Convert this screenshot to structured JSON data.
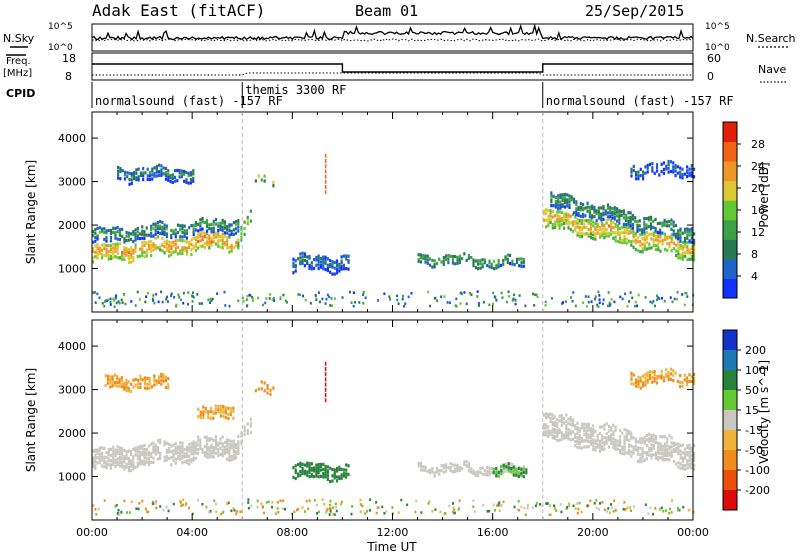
{
  "header": {
    "station": "Adak East (fitACF)",
    "beam": "Beam 01",
    "date": "25/Sep/2015"
  },
  "status_labels": {
    "nsky": "N.Sky",
    "nsearch": "N.Search",
    "freq": "Freq.",
    "freq_unit": "[MHz]",
    "nave": "Nave",
    "cpid": "CPID",
    "noise_top_left": "10^5",
    "noise_bottom_left": "10^0",
    "noise_top_right": "10^5",
    "noise_bottom_right": "10^0",
    "freq_top": "18",
    "freq_bottom": "8",
    "nave_top": "60",
    "nave_bottom": "0"
  },
  "cpid_segments": [
    {
      "label": "normalsound (fast) -157 RF",
      "start_hour": 0,
      "end_hour": 6
    },
    {
      "label": "themis 3300 RF",
      "start_hour": 6,
      "end_hour": 18
    },
    {
      "label": "normalsound (fast) -157 RF",
      "start_hour": 18,
      "end_hour": 24
    }
  ],
  "chart_data": [
    {
      "type": "heatmap",
      "name": "power",
      "ylabel": "Slant Range [km]",
      "xlabel": "Time UT",
      "x_ticks": [
        "00:00",
        "04:00",
        "08:00",
        "12:00",
        "16:00",
        "20:00",
        "00:00"
      ],
      "y_ticks": [
        1000,
        2000,
        3000,
        4000
      ],
      "xlim": [
        0,
        24
      ],
      "ylim": [
        0,
        4600
      ],
      "colorbar": {
        "label": "Power [dB]",
        "ticks": [
          4,
          8,
          12,
          16,
          20,
          24,
          28
        ],
        "range": [
          0,
          32
        ],
        "colors": [
          "#1432ff",
          "#1e64c8",
          "#287850",
          "#3ca046",
          "#64c832",
          "#dcc832",
          "#f09628",
          "#f06414",
          "#e11e0a"
        ]
      },
      "bands": [
        {
          "t0": 0.0,
          "t1": 5.8,
          "r_start": 1350,
          "r_end": 1700,
          "width": 380,
          "level": 24
        },
        {
          "t0": 0.0,
          "t1": 5.8,
          "r_start": 1750,
          "r_end": 2050,
          "width": 320,
          "level": 12
        },
        {
          "t0": 5.8,
          "t1": 6.3,
          "r_start": 1700,
          "r_end": 2200,
          "width": 350,
          "level": 18
        },
        {
          "t0": 6.5,
          "t1": 7.2,
          "r_start": 3050,
          "r_end": 3050,
          "width": 200,
          "level": 18
        },
        {
          "t0": 8.0,
          "t1": 10.2,
          "r_start": 1150,
          "r_end": 1150,
          "width": 350,
          "level": 9
        },
        {
          "t0": 13.0,
          "t1": 17.2,
          "r_start": 1250,
          "r_end": 1150,
          "width": 230,
          "level": 14
        },
        {
          "t0": 18.0,
          "t1": 24.0,
          "r_start": 2200,
          "r_end": 1450,
          "width": 450,
          "level": 22
        },
        {
          "t0": 18.3,
          "t1": 24.0,
          "r_start": 2600,
          "r_end": 1800,
          "width": 350,
          "level": 12
        },
        {
          "t0": 21.5,
          "t1": 24.0,
          "r_start": 3300,
          "r_end": 3300,
          "width": 300,
          "level": 7
        },
        {
          "t0": 1.0,
          "t1": 4.0,
          "r_start": 3200,
          "r_end": 3200,
          "width": 300,
          "level": 10
        }
      ]
    },
    {
      "type": "heatmap",
      "name": "velocity",
      "ylabel": "Slant Range [km]",
      "xlabel": "Time UT",
      "x_ticks": [
        "00:00",
        "04:00",
        "08:00",
        "12:00",
        "16:00",
        "20:00",
        "00:00"
      ],
      "y_ticks": [
        1000,
        2000,
        3000,
        4000
      ],
      "xlim": [
        0,
        24
      ],
      "ylim": [
        0,
        4600
      ],
      "colorbar": {
        "label": "Velocity [m s^-1]",
        "ticks": [
          200,
          100,
          50,
          15,
          -15,
          -50,
          -100,
          -200
        ],
        "range": [
          -250,
          250
        ],
        "colors": [
          "#1432c8",
          "#1e78b4",
          "#28823c",
          "#64c832",
          "#c8c8c0",
          "#f0b43c",
          "#f08c1e",
          "#eb500a",
          "#dc0a0a"
        ]
      },
      "bands": [
        {
          "t0": 0.0,
          "t1": 5.8,
          "r_start": 1400,
          "r_end": 1750,
          "width": 500,
          "level": 0
        },
        {
          "t0": 5.8,
          "t1": 6.3,
          "r_start": 1800,
          "r_end": 2200,
          "width": 350,
          "level": 0
        },
        {
          "t0": 4.2,
          "t1": 5.6,
          "r_start": 2400,
          "r_end": 2600,
          "width": 300,
          "level": -30
        },
        {
          "t0": 6.5,
          "t1": 7.2,
          "r_start": 3050,
          "r_end": 3050,
          "width": 250,
          "level": -40
        },
        {
          "t0": 8.0,
          "t1": 10.2,
          "r_start": 1150,
          "r_end": 1150,
          "width": 350,
          "level": 35
        },
        {
          "t0": 13.0,
          "t1": 17.2,
          "r_start": 1250,
          "r_end": 1150,
          "width": 230,
          "level": 0
        },
        {
          "t0": 16.0,
          "t1": 17.3,
          "r_start": 1200,
          "r_end": 1100,
          "width": 250,
          "level": 30
        },
        {
          "t0": 18.0,
          "t1": 24.0,
          "r_start": 2200,
          "r_end": 1500,
          "width": 600,
          "level": 0
        },
        {
          "t0": 21.5,
          "t1": 24.0,
          "r_start": 3300,
          "r_end": 3300,
          "width": 300,
          "level": -30
        },
        {
          "t0": 0.5,
          "t1": 3.0,
          "r_start": 3200,
          "r_end": 3200,
          "width": 300,
          "level": -30
        }
      ]
    }
  ],
  "xlabel": "Time UT"
}
